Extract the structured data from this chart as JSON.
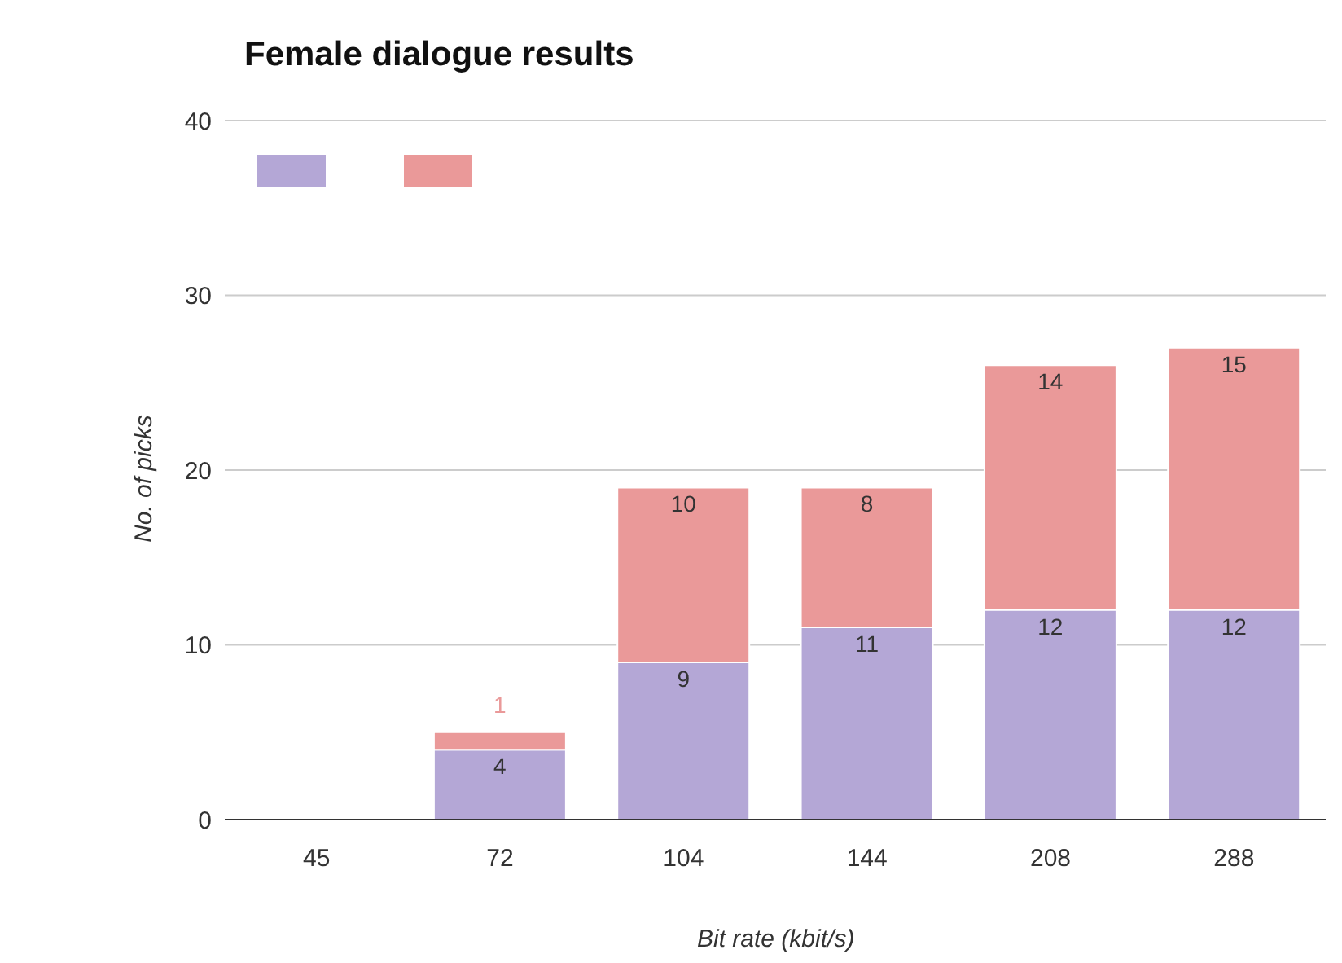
{
  "chart_data": {
    "type": "bar",
    "title": "Female dialogue results",
    "xlabel": "Bit rate (kbit/s)",
    "ylabel": "No. of picks",
    "categories": [
      "45",
      "72",
      "104",
      "144",
      "208",
      "288"
    ],
    "series": [
      {
        "color": "#b4a7d6",
        "values": [
          null,
          4,
          9,
          11,
          12,
          12
        ]
      },
      {
        "color": "#ea9999",
        "values": [
          null,
          1,
          10,
          8,
          14,
          15
        ]
      }
    ],
    "stacked": true,
    "ylim": [
      0,
      40
    ],
    "yticks": [
      0,
      10,
      20,
      30,
      40
    ],
    "grid": "y",
    "data_labels": true
  }
}
